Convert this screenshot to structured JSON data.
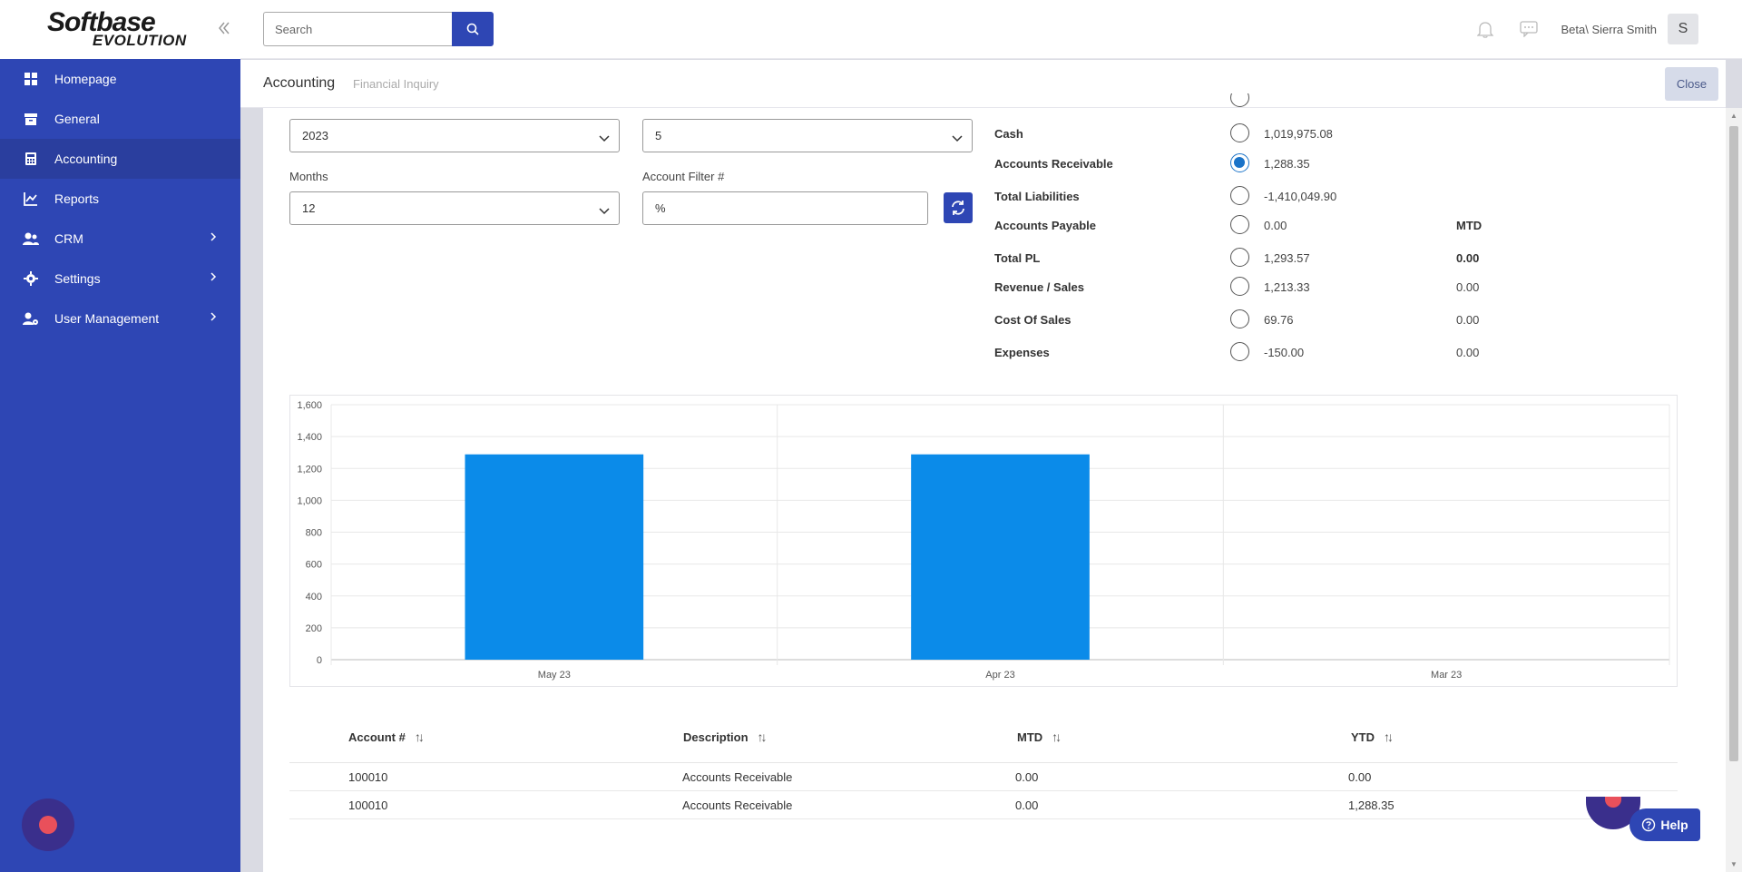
{
  "brand": {
    "logo_main": "Softbase",
    "logo_sub": "EVOLUTION"
  },
  "sidebar": {
    "items": [
      {
        "label": "Homepage",
        "icon": "grid-icon",
        "active": false
      },
      {
        "label": "General",
        "icon": "archive-icon",
        "active": false
      },
      {
        "label": "Accounting",
        "icon": "calculator-icon",
        "active": true
      },
      {
        "label": "Reports",
        "icon": "chart-icon",
        "active": false
      },
      {
        "label": "CRM",
        "icon": "users-icon",
        "active": false,
        "has_children": true
      },
      {
        "label": "Settings",
        "icon": "gear-icon",
        "active": false,
        "has_children": true
      },
      {
        "label": "User Management",
        "icon": "user-gear-icon",
        "active": false,
        "has_children": true
      }
    ]
  },
  "topbar": {
    "search_placeholder": "Search",
    "user_name": "Beta\\ Sierra Smith",
    "avatar_initial": "S"
  },
  "subheader": {
    "title": "Accounting",
    "breadcrumb": "Financial Inquiry",
    "close_label": "Close"
  },
  "filters": {
    "year_value": "2023",
    "period_value": "5",
    "months_label": "Months",
    "months_value": "12",
    "account_filter_label": "Account Filter #",
    "account_filter_value": "%"
  },
  "summary": {
    "mtd_header": "MTD",
    "rows": [
      {
        "label": "Cash",
        "value": "1,019,975.08",
        "mtd": "",
        "checked": false
      },
      {
        "label": "Accounts Receivable",
        "value": "1,288.35",
        "mtd": "",
        "checked": true
      },
      {
        "label": "Total Liabilities",
        "value": "-1,410,049.90",
        "mtd": "",
        "checked": false
      },
      {
        "label": "Accounts Payable",
        "value": "0.00",
        "mtd": "MTD",
        "checked": false
      },
      {
        "label": "Total PL",
        "value": "1,293.57",
        "mtd": "0.00",
        "checked": false
      },
      {
        "label": "Revenue / Sales",
        "value": "1,213.33",
        "mtd": "0.00",
        "checked": false
      },
      {
        "label": "Cost Of Sales",
        "value": "69.76",
        "mtd": "0.00",
        "checked": false
      },
      {
        "label": "Expenses",
        "value": "-150.00",
        "mtd": "0.00",
        "checked": false
      }
    ]
  },
  "chart_data": {
    "type": "bar",
    "categories": [
      "May 23",
      "Apr 23",
      "Mar 23"
    ],
    "values": [
      1288.35,
      1288.35,
      0
    ],
    "ylim": [
      0,
      1600
    ],
    "yticks": [
      "0",
      "200",
      "400",
      "600",
      "800",
      "1,000",
      "1,200",
      "1,400",
      "1,600"
    ],
    "bar_color": "#0b8be9",
    "grid": true
  },
  "table": {
    "headers": [
      "Account #",
      "Description",
      "MTD",
      "YTD"
    ],
    "rows": [
      [
        "100010",
        "Accounts Receivable",
        "0.00",
        "0.00"
      ],
      [
        "100010",
        "Accounts Receivable",
        "0.00",
        "1,288.35"
      ]
    ]
  },
  "help": {
    "label": "Help"
  },
  "colors": {
    "primary": "#2e46b4",
    "active_nav": "#2a3e9e",
    "bar": "#0b8be9",
    "radio_checked": "#1a73c8"
  }
}
